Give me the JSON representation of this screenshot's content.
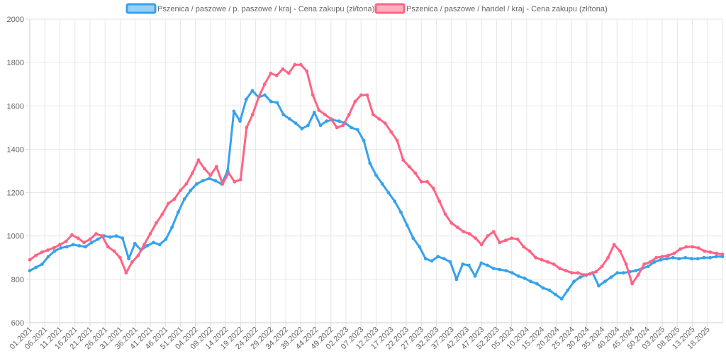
{
  "chart_data": {
    "type": "line",
    "title": "",
    "xlabel": "",
    "ylabel": "",
    "ylim": [
      600,
      2000
    ],
    "yticks": [
      600,
      800,
      1000,
      1200,
      1400,
      1600,
      1800,
      2000
    ],
    "grid": true,
    "legend_position": "top-center",
    "x_tick_labels": [
      "01.2021",
      "06.2021",
      "11.2021",
      "16.2021",
      "21.2021",
      "26.2021",
      "31.2021",
      "36.2021",
      "41.2021",
      "46.2021",
      "51.2021",
      "04.2022",
      "09.2022",
      "14.2022",
      "19.2022",
      "24.2022",
      "29.2022",
      "34.2022",
      "39.2022",
      "44.2022",
      "49.2022",
      "02.2023",
      "07.2023",
      "12.2023",
      "17.2023",
      "22.2023",
      "27.2023",
      "32.2023",
      "37.2023",
      "42.2023",
      "47.2023",
      "52.2023",
      "05.2024",
      "10.2024",
      "15.2024",
      "20.2024",
      "25.2024",
      "30.2024",
      "35.2024",
      "40.2024",
      "45.2024",
      "50.2024",
      "03.2025",
      "08.2025",
      "13.2025",
      "18.2025"
    ],
    "series": [
      {
        "name": "Pszenica / paszowe / p. paszowe / kraj - Cena zakupu (zł/tona)",
        "color": "#36a2eb",
        "fill": "#9ad0f5",
        "values": [
          840,
          855,
          870,
          905,
          930,
          945,
          950,
          960,
          955,
          950,
          970,
          985,
          1000,
          995,
          1000,
          990,
          895,
          965,
          935,
          955,
          970,
          960,
          985,
          1040,
          1110,
          1170,
          1210,
          1240,
          1255,
          1265,
          1255,
          1240,
          1300,
          1575,
          1530,
          1630,
          1670,
          1640,
          1650,
          1620,
          1615,
          1560,
          1540,
          1520,
          1495,
          1510,
          1570,
          1510,
          1530,
          1535,
          1530,
          1520,
          1500,
          1490,
          1440,
          1335,
          1280,
          1240,
          1200,
          1160,
          1110,
          1050,
          990,
          950,
          895,
          885,
          905,
          895,
          880,
          800,
          870,
          865,
          815,
          875,
          865,
          850,
          845,
          840,
          830,
          815,
          805,
          790,
          780,
          760,
          750,
          730,
          710,
          750,
          790,
          810,
          820,
          830,
          770,
          790,
          810,
          830,
          830,
          835,
          840,
          850,
          860,
          880,
          890,
          895,
          900,
          895,
          900,
          895,
          895,
          900,
          900,
          905,
          905
        ]
      },
      {
        "name": "Pszenica / paszowe / handel / kraj - Cena zakupu (zł/tona)",
        "color": "#ff6384",
        "fill": "#ffb1c1",
        "values": [
          890,
          910,
          925,
          935,
          945,
          960,
          975,
          1005,
          990,
          970,
          985,
          1010,
          1000,
          950,
          930,
          900,
          830,
          880,
          910,
          960,
          1010,
          1060,
          1100,
          1150,
          1170,
          1210,
          1240,
          1290,
          1350,
          1310,
          1280,
          1320,
          1240,
          1290,
          1250,
          1260,
          1500,
          1560,
          1640,
          1700,
          1750,
          1740,
          1770,
          1750,
          1790,
          1790,
          1760,
          1650,
          1580,
          1560,
          1540,
          1500,
          1510,
          1560,
          1620,
          1650,
          1650,
          1560,
          1540,
          1520,
          1480,
          1440,
          1350,
          1320,
          1290,
          1250,
          1250,
          1220,
          1160,
          1100,
          1060,
          1040,
          1020,
          1010,
          990,
          960,
          1000,
          1020,
          970,
          980,
          990,
          985,
          950,
          930,
          900,
          890,
          880,
          870,
          850,
          840,
          830,
          830,
          820,
          825,
          835,
          860,
          900,
          960,
          930,
          870,
          780,
          820,
          870,
          880,
          900,
          905,
          910,
          920,
          940,
          950,
          950,
          945,
          930,
          925,
          920,
          915
        ]
      }
    ]
  }
}
